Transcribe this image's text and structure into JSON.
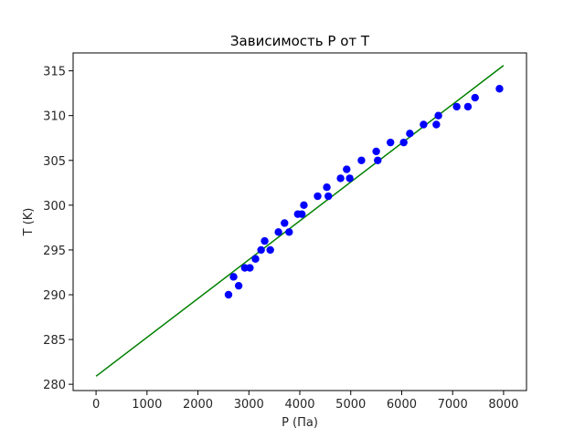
{
  "chart_data": {
    "type": "scatter",
    "title": "Зависимость P от T",
    "xlabel": "P (Па)",
    "ylabel": "T (K)",
    "xlim": [
      -450,
      8450
    ],
    "ylim": [
      279.3,
      317.0
    ],
    "xticks": [
      0,
      1000,
      2000,
      3000,
      4000,
      5000,
      6000,
      7000,
      8000
    ],
    "yticks": [
      280,
      285,
      290,
      295,
      300,
      305,
      310,
      315
    ],
    "grid": false,
    "series": [
      {
        "kind": "scatter",
        "color": "#0000ff",
        "x": [
          2600,
          2700,
          2800,
          2920,
          3020,
          3130,
          3240,
          3310,
          3420,
          3580,
          3700,
          3790,
          3960,
          4040,
          4080,
          4350,
          4530,
          4560,
          4800,
          4920,
          4980,
          5210,
          5500,
          5530,
          5780,
          6040,
          6160,
          6430,
          6680,
          6720,
          7080,
          7300,
          7440,
          7920
        ],
        "y": [
          290,
          292,
          291,
          293,
          293,
          294,
          295,
          296,
          295,
          297,
          298,
          297,
          299,
          299,
          300,
          301,
          302,
          301,
          303,
          304,
          303,
          305,
          306,
          305,
          307,
          307,
          308,
          309,
          309,
          310,
          311,
          311,
          312,
          313
        ]
      },
      {
        "kind": "line",
        "color": "#008000",
        "x": [
          0,
          8000
        ],
        "y": [
          280.9,
          315.6
        ]
      }
    ]
  }
}
